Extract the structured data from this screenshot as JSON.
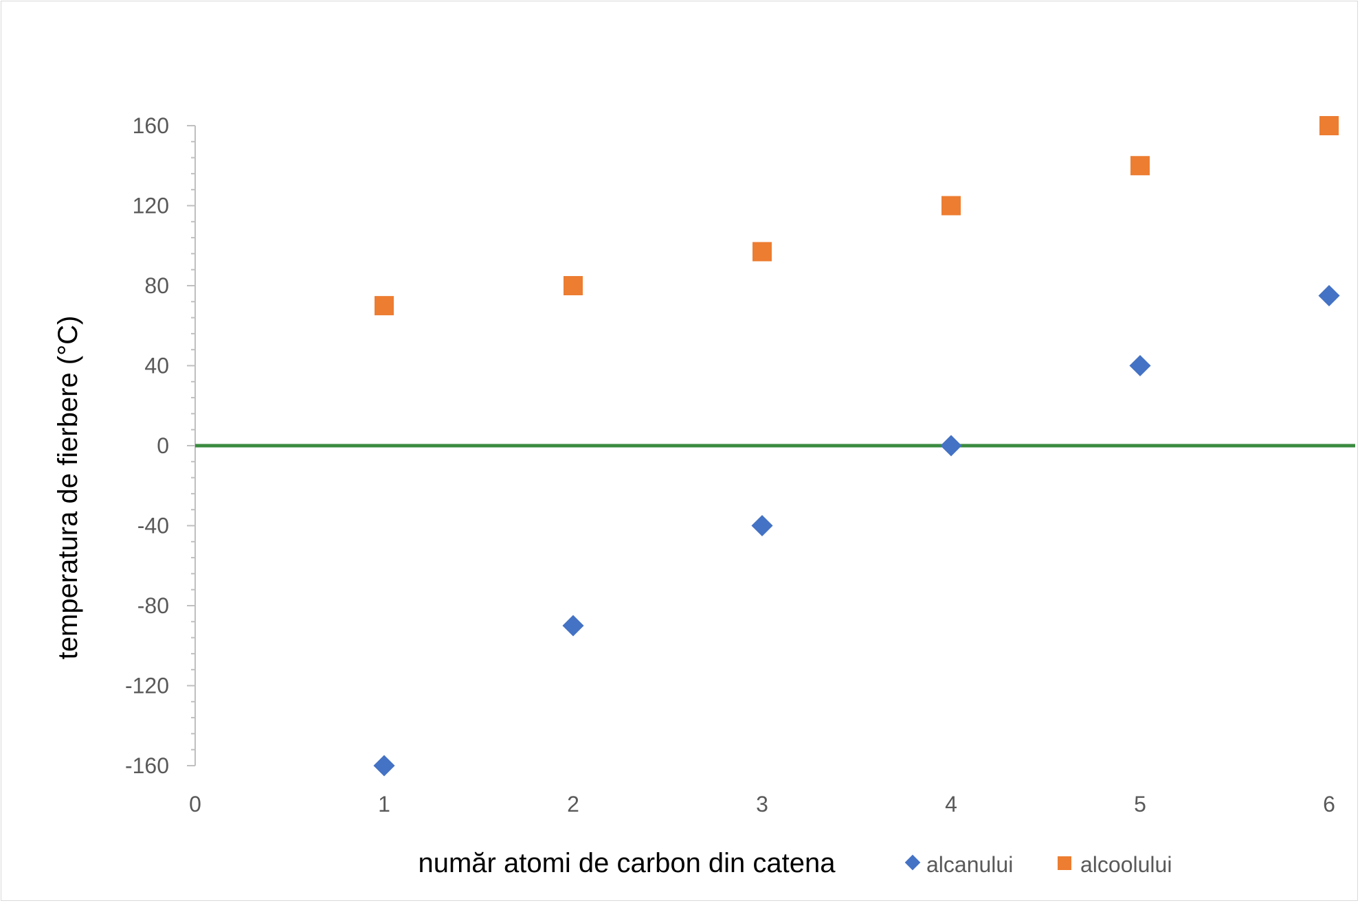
{
  "chart_data": {
    "type": "scatter",
    "xlabel": "număr atomi de carbon din catena",
    "ylabel": "temperatura de fierbere (°C)",
    "xlim": [
      0,
      6
    ],
    "ylim": [
      -160,
      160
    ],
    "x_ticks": [
      0,
      1,
      2,
      3,
      4,
      5,
      6
    ],
    "y_ticks": [
      -160,
      -120,
      -80,
      -40,
      0,
      40,
      80,
      120,
      160
    ],
    "grid": false,
    "legend_position": "bottom-right",
    "reference_line": {
      "y": 0,
      "color": "#3a8a3f"
    },
    "series": [
      {
        "name": "alcanului",
        "marker": "diamond",
        "color": "#4472c4",
        "points": [
          [
            1,
            -160
          ],
          [
            2,
            -90
          ],
          [
            3,
            -40
          ],
          [
            4,
            0
          ],
          [
            5,
            40
          ],
          [
            6,
            75
          ]
        ]
      },
      {
        "name": "alcoolului",
        "marker": "square",
        "color": "#ed7d31",
        "points": [
          [
            1,
            70
          ],
          [
            2,
            80
          ],
          [
            3,
            97
          ],
          [
            4,
            120
          ],
          [
            5,
            140
          ],
          [
            6,
            160
          ]
        ]
      }
    ]
  }
}
